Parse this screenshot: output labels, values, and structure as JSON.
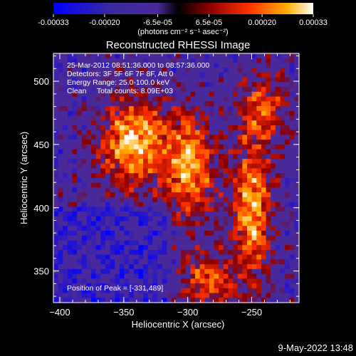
{
  "colorbar": {
    "ticks": [
      "-0.00033",
      "-0.00020",
      "-6.5e-05",
      "6.5e-05",
      "0.00020",
      "0.00033"
    ],
    "tick_values": [
      -0.00033,
      -0.0002,
      -6.5e-05,
      6.5e-05,
      0.0002,
      0.00033
    ],
    "range": [
      -0.00033,
      0.00033
    ],
    "unit_label": "(photons cm⁻² s⁻¹ asec⁻²)"
  },
  "annotations": {
    "line1": "25-Mar-2012 08:51:36.000 to 08:57:36.000",
    "line2": "Detectors: 3F 5F 6F 7F 8F, Att 0",
    "line3": "Energy Range: 25.0-100.0 keV",
    "line4": "Clean     Total counts: 8.09E+03",
    "peak": "Position of Peak = [-331,489]"
  },
  "timestamp": "9-May-2022 13:48",
  "chart_data": {
    "type": "heatmap",
    "title": "Reconstructed RHESSI Image",
    "xlabel": "Heliocentric X (arcsec)",
    "ylabel": "Heliocentric Y (arcsec)",
    "xlim": [
      -405,
      -213
    ],
    "ylim": [
      325,
      522
    ],
    "x_ticks": [
      -400,
      -350,
      -300,
      -250
    ],
    "y_ticks": [
      350,
      400,
      450,
      500
    ],
    "color_range": [
      -0.00033,
      0.00033
    ],
    "peak_position": [
      -331,
      489
    ],
    "colors": {
      "min": "#0000ff",
      "negative_floor": "#4a2a9a",
      "zero": "#000000",
      "low": "#8a0000",
      "mid": "#ff3000",
      "high": "#ffb000",
      "max": "#ffffff"
    }
  }
}
